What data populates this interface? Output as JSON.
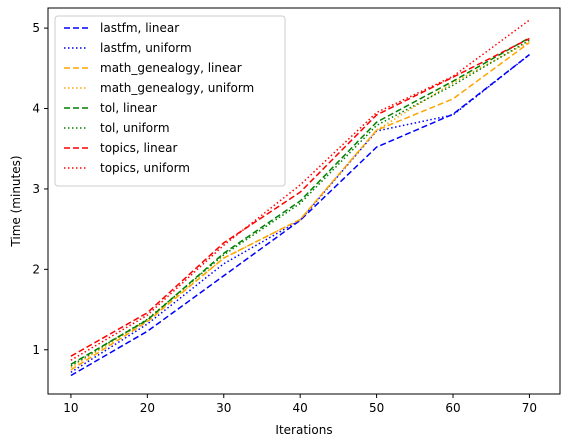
{
  "chart_data": {
    "type": "line",
    "xlabel": "Iterations",
    "ylabel": "Time (minutes)",
    "xlim": [
      7,
      74
    ],
    "ylim": [
      0.45,
      5.25
    ],
    "xticks": [
      10,
      20,
      30,
      40,
      50,
      60,
      70
    ],
    "yticks": [
      1,
      2,
      3,
      4,
      5
    ],
    "legend_position": "top-left",
    "x": [
      10,
      20,
      30,
      40,
      50,
      60,
      70
    ],
    "series": [
      {
        "name": "lastfm, linear",
        "color": "#0000ff",
        "style": "dashed",
        "values": [
          0.68,
          1.23,
          1.92,
          2.61,
          3.52,
          3.93,
          4.67
        ]
      },
      {
        "name": "lastfm, uniform",
        "color": "#0000ff",
        "style": "dotted",
        "values": [
          0.72,
          1.32,
          2.07,
          2.61,
          3.72,
          3.92,
          4.67
        ]
      },
      {
        "name": "math_genealogy, linear",
        "color": "#ffa500",
        "style": "dashed",
        "values": [
          0.75,
          1.35,
          2.14,
          2.62,
          3.73,
          4.12,
          4.82
        ]
      },
      {
        "name": "math_genealogy, uniform",
        "color": "#ffa500",
        "style": "dotted",
        "values": [
          0.78,
          1.37,
          2.14,
          2.62,
          3.73,
          4.32,
          4.83
        ]
      },
      {
        "name": "tol, linear",
        "color": "#008000",
        "style": "dashed",
        "values": [
          0.82,
          1.37,
          2.2,
          2.85,
          3.83,
          4.34,
          4.88
        ]
      },
      {
        "name": "tol, uniform",
        "color": "#008000",
        "style": "dotted",
        "values": [
          0.8,
          1.38,
          2.18,
          2.82,
          3.79,
          4.29,
          4.85
        ]
      },
      {
        "name": "topics, linear",
        "color": "#ff0000",
        "style": "dashed",
        "values": [
          0.92,
          1.46,
          2.33,
          2.96,
          3.92,
          4.39,
          4.87
        ]
      },
      {
        "name": "topics, uniform",
        "color": "#ff0000",
        "style": "dotted",
        "values": [
          0.87,
          1.43,
          2.3,
          3.05,
          3.95,
          4.4,
          5.1
        ]
      }
    ]
  }
}
